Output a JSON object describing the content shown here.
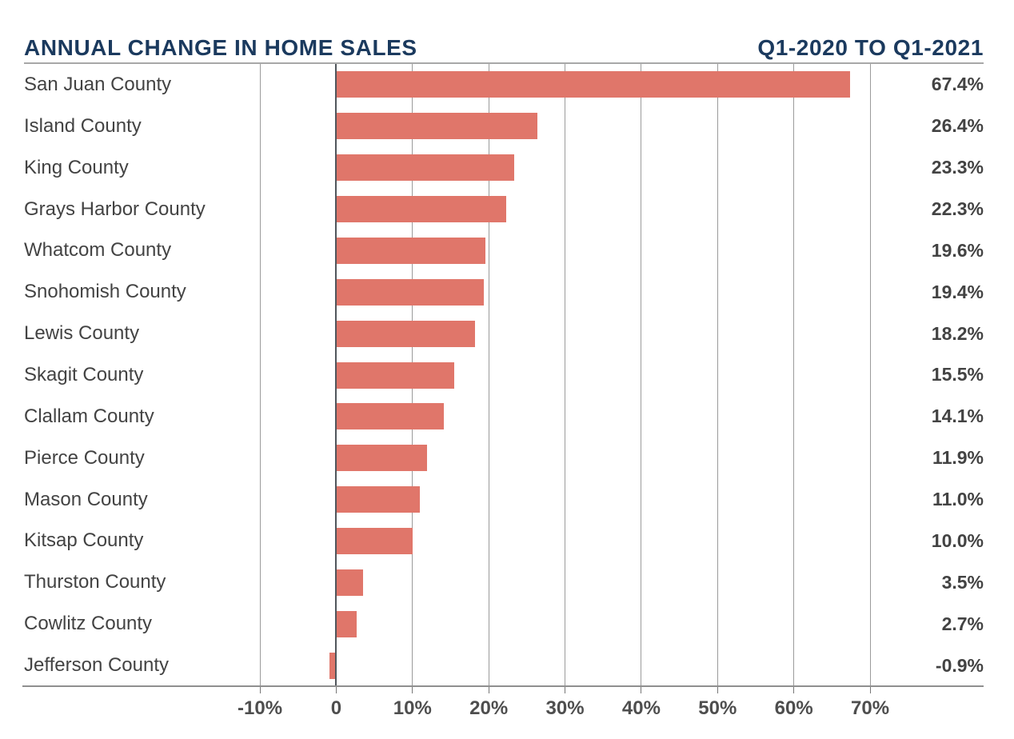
{
  "header": {
    "title": "ANNUAL CHANGE IN HOME SALES",
    "period": "Q1-2020 TO Q1-2021"
  },
  "chart_data": {
    "type": "bar",
    "orientation": "horizontal",
    "title": "ANNUAL CHANGE IN HOME SALES",
    "subtitle": "Q1-2020 TO Q1-2021",
    "categories": [
      "San Juan County",
      "Island County",
      "King County",
      "Grays Harbor County",
      "Whatcom County",
      "Snohomish County",
      "Lewis County",
      "Skagit County",
      "Clallam County",
      "Pierce County",
      "Mason County",
      "Kitsap County",
      "Thurston County",
      "Cowlitz County",
      "Jefferson County"
    ],
    "values": [
      67.4,
      26.4,
      23.3,
      22.3,
      19.6,
      19.4,
      18.2,
      15.5,
      14.1,
      11.9,
      11.0,
      10.0,
      3.5,
      2.7,
      -0.9
    ],
    "value_labels": [
      "67.4%",
      "26.4%",
      "23.3%",
      "22.3%",
      "19.6%",
      "19.4%",
      "18.2%",
      "15.5%",
      "14.1%",
      "11.9%",
      "11.0%",
      "10.0%",
      "3.5%",
      "2.7%",
      "-0.9%"
    ],
    "x_ticks": [
      {
        "label": "-10%",
        "value": -10
      },
      {
        "label": "0",
        "value": 0
      },
      {
        "label": "10%",
        "value": 10
      },
      {
        "label": "20%",
        "value": 20
      },
      {
        "label": "30%",
        "value": 30
      },
      {
        "label": "40%",
        "value": 40
      },
      {
        "label": "50%",
        "value": 50
      },
      {
        "label": "60%",
        "value": 60
      },
      {
        "label": "70%",
        "value": 70
      }
    ],
    "xlim": [
      -12,
      75
    ],
    "grid": true,
    "legend": false,
    "value_label_position": "right",
    "xlabel": "",
    "ylabel": ""
  },
  "colors": {
    "bar": "#e0766a",
    "title": "#1b3a5e",
    "text": "#434343",
    "tick_text": "#4e4e4e",
    "gridline": "#9b9b9b",
    "zero_line": "#50565c",
    "axis_line": "#8f8f8f",
    "header_divider": "#a8a8a8",
    "background": "#ffffff"
  }
}
